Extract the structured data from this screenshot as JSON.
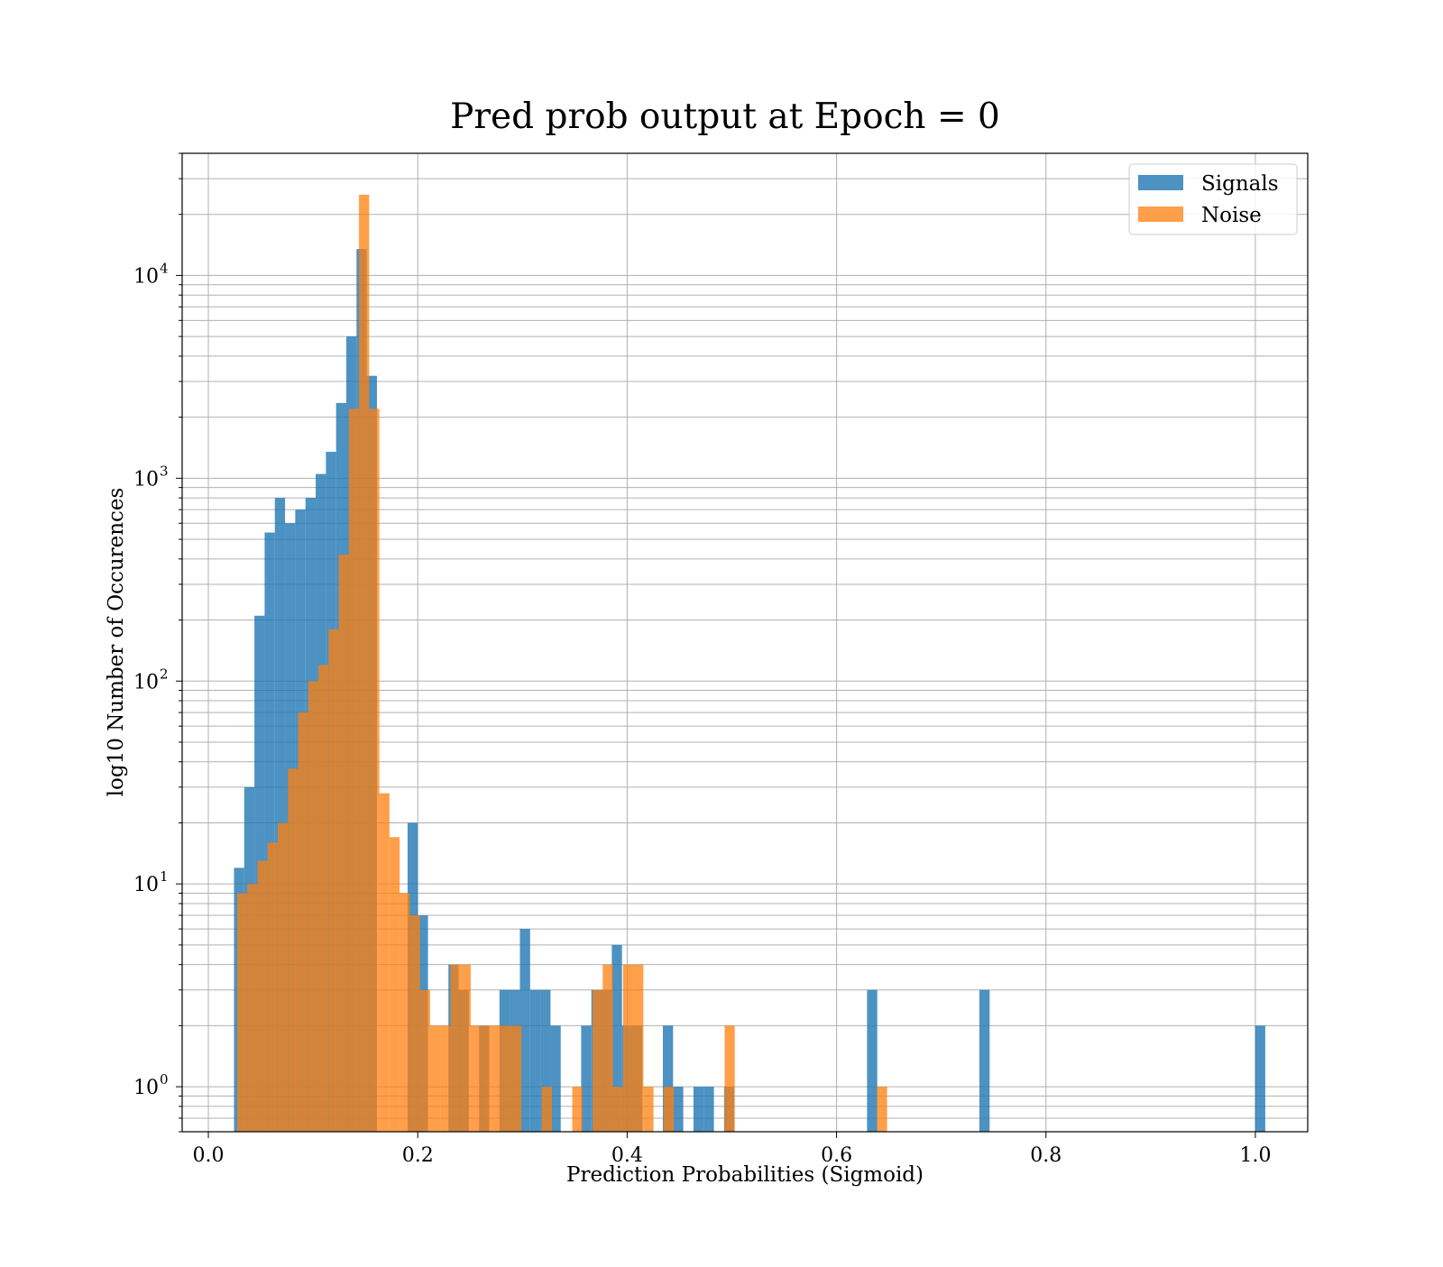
{
  "chart_data": {
    "type": "bar",
    "subtype": "histogram",
    "title": "Pred prob output at Epoch = 0",
    "xlabel": "Prediction Probabilities (Sigmoid)",
    "ylabel": "log10 Number of Occurences",
    "xlim": [
      -0.025,
      1.05
    ],
    "ylim": [
      0.6,
      40000
    ],
    "yscale": "log",
    "grid": true,
    "grid_minor_y": true,
    "legend_position": "top-right",
    "x_ticks": [
      {
        "value": 0.0,
        "label": "0.0"
      },
      {
        "value": 0.2,
        "label": "0.2"
      },
      {
        "value": 0.4,
        "label": "0.4"
      },
      {
        "value": 0.6,
        "label": "0.6"
      },
      {
        "value": 0.8,
        "label": "0.8"
      },
      {
        "value": 1.0,
        "label": "1.0"
      }
    ],
    "y_ticks": [
      {
        "value": 1,
        "mantissa": "10",
        "exponent": "0"
      },
      {
        "value": 10,
        "mantissa": "10",
        "exponent": "1"
      },
      {
        "value": 100,
        "mantissa": "10",
        "exponent": "2"
      },
      {
        "value": 1000,
        "mantissa": "10",
        "exponent": "3"
      },
      {
        "value": 10000,
        "mantissa": "10",
        "exponent": "4"
      }
    ],
    "series": [
      {
        "name": "Signals",
        "color": "#1f77b4",
        "opacity": 0.8,
        "bin_start": 0.0245,
        "bin_width": 0.009752,
        "counts": [
          12,
          30,
          210,
          540,
          800,
          600,
          700,
          800,
          1050,
          1350,
          2350,
          5000,
          13500,
          3200,
          0,
          0,
          0,
          20,
          7,
          0,
          0,
          4,
          3,
          0,
          2,
          0,
          3,
          3,
          6,
          3,
          3,
          2,
          0,
          0,
          2,
          3,
          3,
          5,
          2,
          2,
          0,
          0,
          2,
          1,
          0,
          1,
          1,
          0,
          1,
          0,
          0,
          0,
          0,
          0,
          0,
          0,
          0,
          0,
          0,
          0,
          0,
          0,
          3,
          0,
          0,
          0,
          0,
          0,
          0,
          0,
          0,
          0,
          0,
          3,
          0,
          0,
          0,
          0,
          0,
          0,
          0,
          0,
          0,
          0,
          0,
          0,
          0,
          0,
          0,
          0,
          0,
          0,
          0,
          0,
          0,
          0,
          0,
          0,
          0,
          0,
          2
        ]
      },
      {
        "name": "Noise",
        "color": "#ff7f0e",
        "opacity": 0.75,
        "bin_start": 0.0275,
        "bin_width": 0.009699,
        "counts": [
          9,
          10,
          13,
          16,
          20,
          37,
          70,
          100,
          120,
          180,
          420,
          2200,
          25000,
          2200,
          28,
          17,
          9,
          7,
          3,
          2,
          2,
          4,
          4,
          2,
          2,
          2,
          2,
          2,
          0,
          0,
          1,
          0,
          0,
          1,
          0,
          3,
          4,
          1,
          4,
          4,
          1,
          0,
          1,
          0,
          0,
          0,
          0,
          0,
          2,
          0,
          0,
          0,
          0,
          0,
          0,
          0,
          0,
          0,
          0,
          0,
          0,
          0,
          0,
          1,
          0,
          0,
          0,
          0,
          0,
          0,
          0,
          0,
          0,
          0,
          0,
          0,
          0,
          0,
          0,
          0,
          0,
          0,
          0,
          0,
          0,
          0,
          0,
          0,
          0,
          0,
          0,
          0,
          0,
          0,
          0,
          0,
          0,
          0,
          0,
          0,
          0,
          0,
          0
        ]
      }
    ]
  }
}
